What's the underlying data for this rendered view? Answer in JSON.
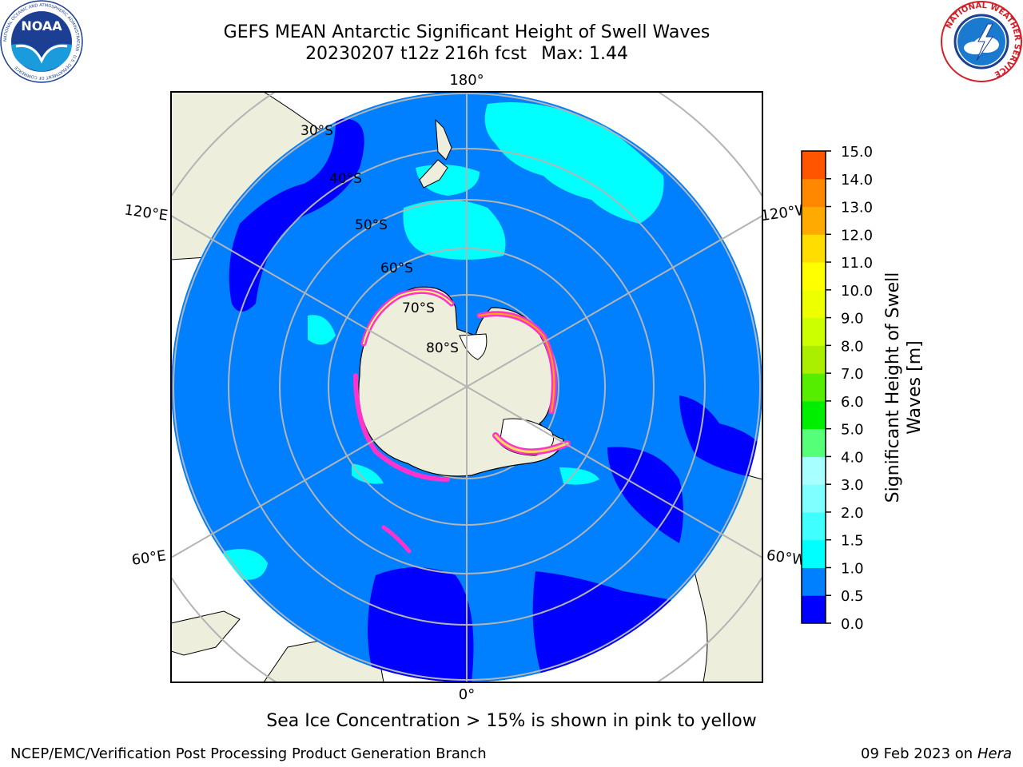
{
  "header": {
    "title_line1": "GEFS MEAN Antarctic Significant Height of Swell Waves",
    "title_run": "20230207 t12z 216h fcst",
    "title_max": "Max: 1.44"
  },
  "logos": {
    "noaa": {
      "text": "NOAA",
      "ring_text": "NATIONAL OCEANIC AND ATMOSPHERIC ADMINISTRATION · U.S. DEPARTMENT OF COMMERCE"
    },
    "nws": {
      "ring_text": "NATIONAL WEATHER SERVICE"
    }
  },
  "map": {
    "projection": "south-polar-stereographic",
    "longitude_labels": {
      "top": "180°",
      "bottom": "0°",
      "left_upper": "120°E",
      "left_lower": "60°E",
      "right_upper": "120°W",
      "right_lower": "60°W"
    },
    "latitude_labels": [
      "30°S",
      "40°S",
      "50°S",
      "60°S",
      "70°S",
      "80°S"
    ],
    "colors": {
      "ocean_low": "#0000ff",
      "ocean_mid": "#0080ff",
      "ocean_high": "#00ffff",
      "land": "#eeeedc",
      "grid": "#b4b4b4",
      "sea_ice": "#ff33cc"
    }
  },
  "colorbar": {
    "label_line1": "Significant Height of Swell",
    "label_line2": "Waves [m]",
    "ticks": [
      "0.0",
      "0.5",
      "1.0",
      "1.5",
      "2.0",
      "3.0",
      "4.0",
      "5.0",
      "6.0",
      "7.0",
      "8.0",
      "9.0",
      "10.0",
      "11.0",
      "12.0",
      "13.0",
      "14.0",
      "15.0"
    ],
    "colors": [
      "#0000ff",
      "#0080ff",
      "#00ffff",
      "#40ffff",
      "#7fffff",
      "#a8ffff",
      "#55ff77",
      "#00ee00",
      "#55ee00",
      "#aaee00",
      "#ccff00",
      "#eeff00",
      "#ffff00",
      "#ffdd00",
      "#ffaa00",
      "#ff8800",
      "#ff5500",
      "#ff2200",
      "#ff0000"
    ]
  },
  "footer": {
    "note": "Sea Ice Concentration > 15% is shown in pink to yellow",
    "credit": "NCEP/EMC/Verification Post Processing Product Generation Branch",
    "date": "09 Feb 2023 on",
    "machine": "Hera"
  }
}
